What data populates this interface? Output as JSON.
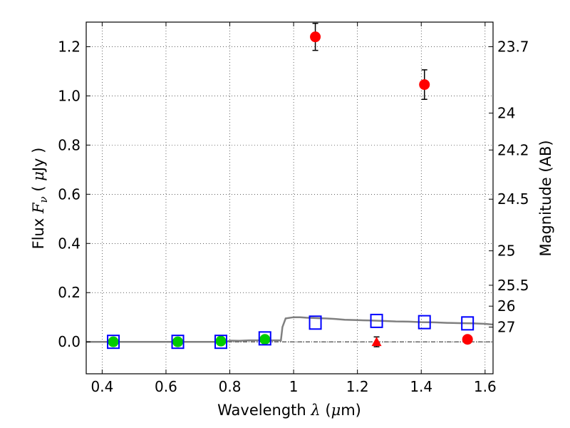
{
  "chart_data": {
    "type": "scatter",
    "xlabel": "Wavelength  λ (μm)",
    "ylabel": "Flux  F_ν  ( μJy )",
    "ylabel_right": "Magnitude (AB)",
    "xlim": [
      0.35,
      1.625
    ],
    "ylim": [
      -0.13,
      1.3
    ],
    "x_ticks": [
      0.4,
      0.6,
      0.8,
      1.0,
      1.2,
      1.4,
      1.6
    ],
    "x_tick_labels": [
      "0.4",
      "0.6",
      "0.8",
      "1",
      "1.2",
      "1.4",
      "1.6"
    ],
    "y_ticks": [
      0.0,
      0.2,
      0.4,
      0.6,
      0.8,
      1.0,
      1.2
    ],
    "y_tick_labels": [
      "0.0",
      "0.2",
      "0.4",
      "0.6",
      "0.8",
      "1.0",
      "1.2"
    ],
    "right_ticks": [
      {
        "label": "23.7",
        "flux": 1.2
      },
      {
        "label": "24",
        "flux": 0.93
      },
      {
        "label": "24.2",
        "flux": 0.78
      },
      {
        "label": "24.5",
        "flux": 0.58
      },
      {
        "label": "25",
        "flux": 0.37
      },
      {
        "label": "25.5",
        "flux": 0.23
      },
      {
        "label": "26",
        "flux": 0.145
      },
      {
        "label": "27",
        "flux": 0.06
      }
    ],
    "grid": true,
    "series": [
      {
        "marker": "circle",
        "color": "#00cc00",
        "points": [
          {
            "x": 0.435,
            "y": 0.0,
            "err": 0.01
          },
          {
            "x": 0.637,
            "y": 0.0,
            "err": 0.006
          },
          {
            "x": 0.772,
            "y": 0.003,
            "err": 0.008
          },
          {
            "x": 0.91,
            "y": 0.01,
            "err": 0.008
          }
        ]
      },
      {
        "marker": "circle",
        "color": "#ff0000",
        "points": [
          {
            "x": 1.068,
            "y": 1.24,
            "err": 0.055
          },
          {
            "x": 1.41,
            "y": 1.046,
            "err": 0.06
          },
          {
            "x": 1.545,
            "y": 0.01,
            "err": 0.01
          }
        ]
      },
      {
        "marker": "triangle",
        "color": "#ff0000",
        "points": [
          {
            "x": 1.26,
            "y": 0.0,
            "err": 0.02
          }
        ]
      },
      {
        "marker": "open-square",
        "color": "#0000ff",
        "points": [
          {
            "x": 0.435,
            "y": 0.0
          },
          {
            "x": 0.637,
            "y": 0.0
          },
          {
            "x": 0.772,
            "y": 0.0
          },
          {
            "x": 0.91,
            "y": 0.014
          },
          {
            "x": 1.068,
            "y": 0.078
          },
          {
            "x": 1.26,
            "y": 0.085
          },
          {
            "x": 1.41,
            "y": 0.08
          },
          {
            "x": 1.545,
            "y": 0.075
          }
        ]
      }
    ],
    "model_line": {
      "color": "#808080",
      "points": [
        [
          0.35,
          0.0
        ],
        [
          0.79,
          0.0
        ],
        [
          0.8,
          0.005
        ],
        [
          0.83,
          0.004
        ],
        [
          0.86,
          0.006
        ],
        [
          0.9,
          0.006
        ],
        [
          0.955,
          0.006
        ],
        [
          0.96,
          0.005
        ],
        [
          0.965,
          0.06
        ],
        [
          0.975,
          0.095
        ],
        [
          1.0,
          0.1
        ],
        [
          1.02,
          0.1
        ],
        [
          1.04,
          0.098
        ],
        [
          1.06,
          0.097
        ],
        [
          1.08,
          0.096
        ],
        [
          1.1,
          0.095
        ],
        [
          1.13,
          0.093
        ],
        [
          1.16,
          0.09
        ],
        [
          1.2,
          0.088
        ],
        [
          1.24,
          0.087
        ],
        [
          1.28,
          0.085
        ],
        [
          1.32,
          0.083
        ],
        [
          1.36,
          0.082
        ],
        [
          1.4,
          0.08
        ],
        [
          1.44,
          0.079
        ],
        [
          1.48,
          0.077
        ],
        [
          1.52,
          0.076
        ],
        [
          1.56,
          0.075
        ],
        [
          1.6,
          0.073
        ],
        [
          1.625,
          0.07
        ]
      ]
    }
  }
}
